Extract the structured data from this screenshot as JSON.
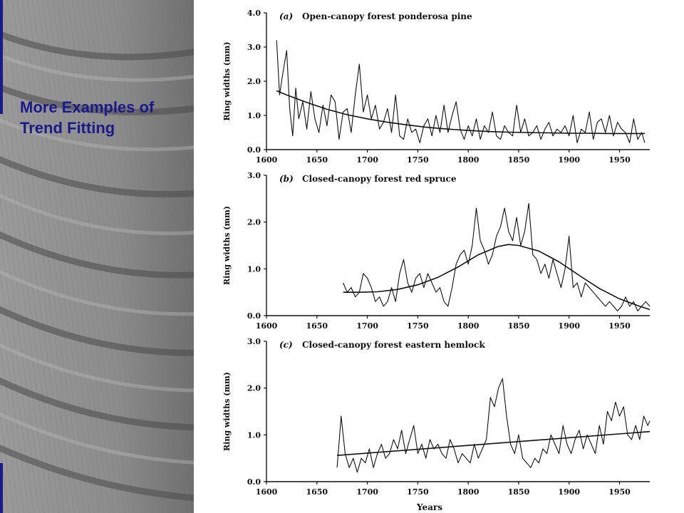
{
  "slide": {
    "title_line1": "More Examples of",
    "title_line2": "Trend Fitting",
    "title_color": "#1a1a8c",
    "edge_bar_color": "#1a1a8c"
  },
  "chart_data": [
    {
      "type": "line",
      "panel": "(a)",
      "title": "Open-canopy forest ponderosa pine",
      "ylabel": "Ring widths (mm)",
      "xlabel": "",
      "xlim": [
        1600,
        1980
      ],
      "ylim": [
        0,
        4.0
      ],
      "x_ticks": [
        1600,
        1650,
        1700,
        1750,
        1800,
        1850,
        1900,
        1950
      ],
      "y_ticks": [
        0.0,
        1.0,
        2.0,
        3.0,
        4.0
      ],
      "y_tick_labels": [
        "0.0",
        "1.0",
        "2.0",
        "3.0",
        "4.0"
      ],
      "grid": false,
      "series": [
        {
          "role": "ring widths",
          "x": [
            1610,
            1613,
            1616,
            1620,
            1623,
            1626,
            1629,
            1632,
            1636,
            1640,
            1644,
            1648,
            1652,
            1656,
            1660,
            1664,
            1668,
            1672,
            1676,
            1680,
            1684,
            1688,
            1692,
            1696,
            1700,
            1704,
            1708,
            1712,
            1716,
            1720,
            1724,
            1728,
            1732,
            1736,
            1740,
            1744,
            1748,
            1752,
            1756,
            1760,
            1764,
            1768,
            1772,
            1776,
            1780,
            1784,
            1788,
            1792,
            1796,
            1800,
            1804,
            1808,
            1812,
            1816,
            1820,
            1824,
            1828,
            1832,
            1836,
            1840,
            1844,
            1848,
            1852,
            1856,
            1860,
            1864,
            1868,
            1872,
            1876,
            1880,
            1884,
            1888,
            1892,
            1896,
            1900,
            1904,
            1908,
            1912,
            1916,
            1920,
            1924,
            1928,
            1932,
            1936,
            1940,
            1944,
            1948,
            1952,
            1956,
            1960,
            1964,
            1968,
            1972,
            1975
          ],
          "y": [
            3.2,
            1.6,
            2.2,
            2.9,
            1.2,
            0.4,
            1.8,
            0.9,
            1.4,
            0.6,
            1.7,
            0.9,
            0.5,
            1.3,
            0.7,
            1.6,
            1.4,
            0.3,
            1.1,
            1.2,
            0.5,
            1.6,
            2.5,
            1.1,
            1.6,
            0.9,
            1.3,
            0.6,
            0.8,
            1.2,
            0.5,
            1.6,
            0.4,
            0.3,
            0.9,
            0.5,
            0.6,
            0.2,
            0.7,
            0.9,
            0.4,
            1.0,
            0.5,
            1.3,
            0.5,
            1.0,
            1.4,
            0.6,
            0.3,
            0.7,
            0.4,
            0.9,
            0.3,
            0.7,
            0.5,
            1.1,
            0.4,
            0.3,
            0.7,
            0.5,
            0.4,
            1.3,
            0.5,
            0.9,
            0.4,
            0.5,
            0.7,
            0.3,
            0.6,
            0.8,
            0.4,
            0.6,
            0.5,
            0.7,
            0.4,
            1.0,
            0.2,
            0.6,
            0.5,
            1.1,
            0.3,
            0.8,
            0.9,
            0.5,
            1.0,
            0.4,
            0.8,
            0.6,
            0.5,
            0.2,
            0.9,
            0.3,
            0.5,
            0.2
          ]
        },
        {
          "role": "fitted trend",
          "x": [
            1610,
            1620,
            1640,
            1660,
            1680,
            1700,
            1720,
            1740,
            1760,
            1780,
            1800,
            1820,
            1840,
            1860,
            1880,
            1900,
            1920,
            1940,
            1960,
            1975
          ],
          "y": [
            1.72,
            1.6,
            1.38,
            1.18,
            1.02,
            0.9,
            0.8,
            0.72,
            0.65,
            0.6,
            0.56,
            0.53,
            0.51,
            0.5,
            0.49,
            0.48,
            0.48,
            0.47,
            0.47,
            0.47
          ]
        }
      ]
    },
    {
      "type": "line",
      "panel": "(b)",
      "title": "Closed-canopy forest red spruce",
      "ylabel": "Ring widths (mm)",
      "xlabel": "",
      "xlim": [
        1600,
        1980
      ],
      "ylim": [
        0,
        3.0
      ],
      "x_ticks": [
        1600,
        1650,
        1700,
        1750,
        1800,
        1850,
        1900,
        1950
      ],
      "y_ticks": [
        0.0,
        1.0,
        2.0,
        3.0
      ],
      "y_tick_labels": [
        "0.0",
        "1.0",
        "2.0",
        "3.0"
      ],
      "grid": false,
      "series": [
        {
          "role": "ring widths",
          "x": [
            1676,
            1680,
            1684,
            1688,
            1692,
            1696,
            1700,
            1704,
            1708,
            1712,
            1716,
            1720,
            1724,
            1728,
            1732,
            1736,
            1740,
            1744,
            1748,
            1752,
            1756,
            1760,
            1764,
            1768,
            1772,
            1776,
            1780,
            1784,
            1788,
            1792,
            1796,
            1800,
            1804,
            1808,
            1812,
            1816,
            1820,
            1824,
            1828,
            1832,
            1836,
            1840,
            1844,
            1848,
            1852,
            1856,
            1860,
            1864,
            1868,
            1872,
            1876,
            1880,
            1884,
            1888,
            1892,
            1896,
            1900,
            1904,
            1908,
            1912,
            1916,
            1920,
            1924,
            1928,
            1932,
            1936,
            1940,
            1944,
            1948,
            1952,
            1956,
            1960,
            1964,
            1968,
            1972,
            1976,
            1980
          ],
          "y": [
            0.7,
            0.5,
            0.6,
            0.4,
            0.5,
            0.9,
            0.8,
            0.6,
            0.3,
            0.4,
            0.2,
            0.3,
            0.6,
            0.3,
            0.9,
            1.2,
            0.7,
            0.5,
            0.8,
            0.9,
            0.6,
            0.9,
            0.7,
            0.5,
            0.6,
            0.3,
            0.2,
            0.6,
            1.1,
            1.3,
            1.4,
            1.1,
            1.5,
            2.3,
            1.6,
            1.4,
            1.1,
            1.3,
            1.7,
            1.9,
            2.3,
            1.8,
            1.6,
            2.1,
            1.5,
            1.8,
            2.4,
            1.3,
            1.2,
            0.9,
            1.1,
            0.8,
            1.2,
            0.9,
            0.6,
            1.0,
            1.7,
            0.6,
            0.7,
            0.4,
            0.7,
            0.6,
            0.5,
            0.4,
            0.3,
            0.2,
            0.3,
            0.2,
            0.1,
            0.2,
            0.4,
            0.2,
            0.3,
            0.1,
            0.2,
            0.3,
            0.2
          ]
        },
        {
          "role": "fitted trend",
          "x": [
            1676,
            1690,
            1710,
            1730,
            1750,
            1770,
            1790,
            1810,
            1830,
            1840,
            1850,
            1870,
            1890,
            1910,
            1930,
            1950,
            1970,
            1980
          ],
          "y": [
            0.5,
            0.5,
            0.51,
            0.56,
            0.66,
            0.82,
            1.04,
            1.3,
            1.48,
            1.52,
            1.5,
            1.38,
            1.15,
            0.86,
            0.58,
            0.36,
            0.2,
            0.13
          ]
        }
      ]
    },
    {
      "type": "line",
      "panel": "(c)",
      "title": "Closed-canopy forest eastern hemlock",
      "ylabel": "Ring widths (mm)",
      "xlabel": "Years",
      "xlim": [
        1600,
        1980
      ],
      "ylim": [
        0,
        3.0
      ],
      "x_ticks": [
        1600,
        1650,
        1700,
        1750,
        1800,
        1850,
        1900,
        1950
      ],
      "y_ticks": [
        0.0,
        1.0,
        2.0,
        3.0
      ],
      "y_tick_labels": [
        "0.0",
        "1.0",
        "2.0",
        "3.0"
      ],
      "grid": false,
      "series": [
        {
          "role": "ring widths",
          "x": [
            1670,
            1674,
            1678,
            1682,
            1686,
            1690,
            1694,
            1698,
            1702,
            1706,
            1710,
            1714,
            1718,
            1722,
            1726,
            1730,
            1734,
            1738,
            1742,
            1746,
            1750,
            1754,
            1758,
            1762,
            1766,
            1770,
            1774,
            1778,
            1782,
            1786,
            1790,
            1794,
            1798,
            1802,
            1806,
            1810,
            1814,
            1818,
            1822,
            1826,
            1830,
            1834,
            1838,
            1842,
            1846,
            1850,
            1854,
            1858,
            1862,
            1866,
            1870,
            1874,
            1878,
            1882,
            1886,
            1890,
            1894,
            1898,
            1902,
            1906,
            1910,
            1914,
            1918,
            1922,
            1926,
            1930,
            1934,
            1938,
            1942,
            1946,
            1950,
            1954,
            1958,
            1962,
            1966,
            1970,
            1974,
            1978,
            1980
          ],
          "y": [
            0.3,
            1.4,
            0.6,
            0.3,
            0.5,
            0.2,
            0.5,
            0.4,
            0.7,
            0.3,
            0.6,
            0.8,
            0.5,
            0.6,
            0.9,
            0.7,
            1.1,
            0.6,
            0.9,
            1.2,
            0.6,
            0.8,
            0.5,
            0.9,
            0.7,
            0.8,
            0.6,
            0.5,
            0.9,
            0.7,
            0.4,
            0.6,
            0.5,
            0.4,
            0.8,
            0.5,
            0.7,
            0.9,
            1.8,
            1.6,
            2.0,
            2.2,
            1.4,
            0.8,
            0.6,
            1.0,
            0.5,
            0.4,
            0.3,
            0.5,
            0.4,
            0.7,
            0.6,
            1.0,
            0.8,
            0.6,
            1.2,
            0.8,
            0.6,
            0.9,
            1.1,
            0.7,
            1.0,
            0.8,
            0.6,
            1.2,
            0.8,
            1.5,
            1.3,
            1.7,
            1.4,
            1.6,
            1.0,
            0.9,
            1.2,
            0.9,
            1.4,
            1.2,
            1.3
          ]
        },
        {
          "role": "fitted trend",
          "x": [
            1670,
            1980
          ],
          "y": [
            0.56,
            1.07
          ]
        }
      ]
    }
  ]
}
